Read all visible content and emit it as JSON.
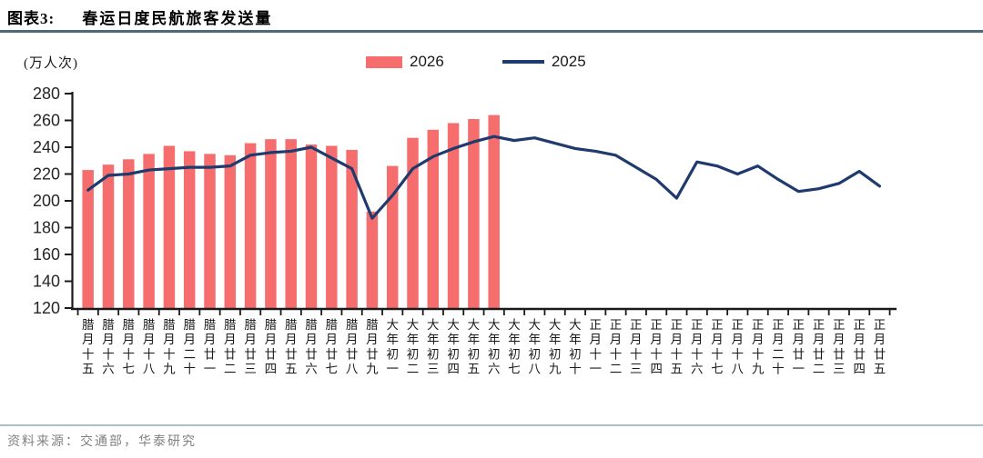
{
  "header": {
    "figure_label": "图表3:",
    "title": "春运日度民航旅客发送量"
  },
  "footer": {
    "source": "资料来源：交通部，华泰研究"
  },
  "colors": {
    "bar": "#f56d6d",
    "line": "#1f3a6d",
    "title_rule": "#4a6a77",
    "footer_rule": "#aabfca",
    "axis": "#1a1a1a",
    "tick_label": "#262626"
  },
  "chart_data": {
    "type": "bar",
    "title": "春运日度民航旅客发送量",
    "unit_label": "(万人次)",
    "xlabel": "",
    "ylabel": "万人次",
    "ylim": [
      120,
      280
    ],
    "ytick_step": 20,
    "grid": false,
    "legend_position": "top",
    "categories": [
      "腊月十五",
      "腊月十六",
      "腊月十七",
      "腊月十八",
      "腊月十九",
      "腊月二十",
      "腊月廿一",
      "腊月廿二",
      "腊月廿三",
      "腊月廿四",
      "腊月廿五",
      "腊月廿六",
      "腊月廿七",
      "腊月廿八",
      "腊月廿九",
      "大年初一",
      "大年初二",
      "大年初三",
      "大年初四",
      "大年初五",
      "大年初六",
      "大年初七",
      "大年初八",
      "大年初九",
      "大年初十",
      "正月十一",
      "正月十二",
      "正月十三",
      "正月十四",
      "正月十五",
      "正月十六",
      "正月十七",
      "正月十八",
      "正月十九",
      "正月二十",
      "正月廿一",
      "正月廿二",
      "正月廿三",
      "正月廿四",
      "正月廿五"
    ],
    "series": [
      {
        "name": "2026",
        "type": "bar",
        "color": "#f56d6d",
        "values": [
          223,
          227,
          231,
          235,
          241,
          237,
          235,
          234,
          243,
          246,
          246,
          242,
          241,
          238,
          192,
          226,
          247,
          253,
          258,
          261,
          264
        ]
      },
      {
        "name": "2025",
        "type": "line",
        "color": "#1f3a6d",
        "values": [
          208,
          219,
          220,
          223,
          224,
          225,
          225,
          226,
          234,
          236,
          237,
          240,
          232,
          224,
          187,
          204,
          224,
          233,
          239,
          244,
          248,
          245,
          247,
          243,
          239,
          237,
          234,
          225,
          216,
          202,
          229,
          226,
          220,
          226,
          216,
          207,
          209,
          213,
          222,
          211
        ]
      }
    ]
  }
}
